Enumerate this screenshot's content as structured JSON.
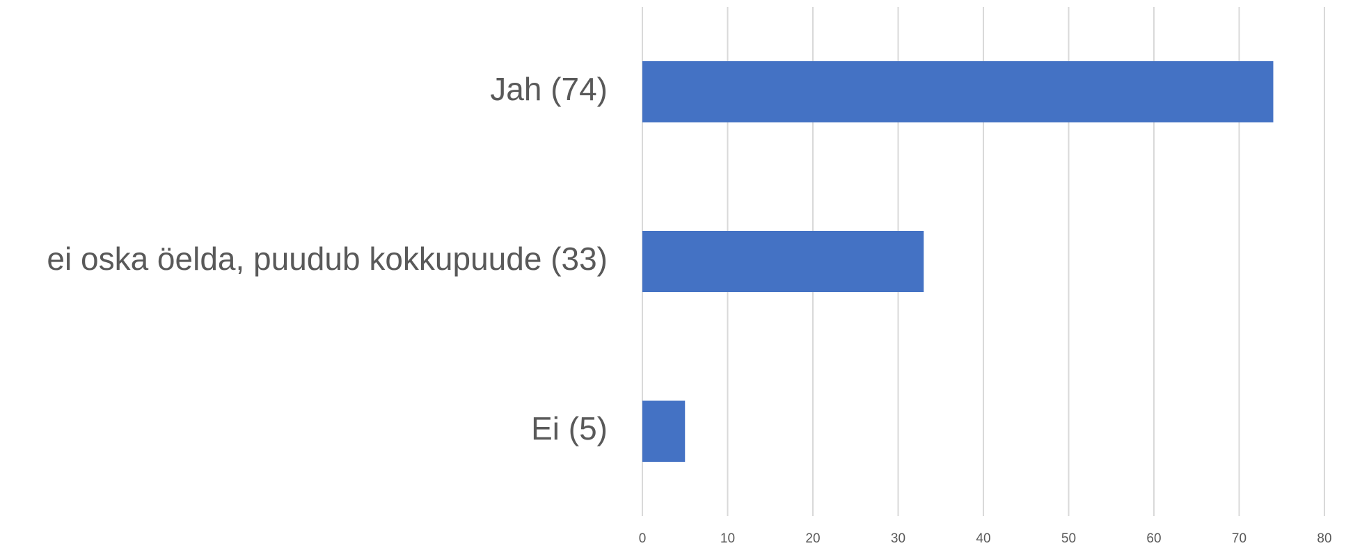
{
  "chart_data": {
    "type": "bar",
    "orientation": "horizontal",
    "categories": [
      "Jah (74)",
      "ei oska öelda, puudub kokkupuude (33)",
      "Ei (5)"
    ],
    "values": [
      74,
      33,
      5
    ],
    "color": "#4472c4",
    "xlim": [
      0,
      80
    ],
    "xticks": [
      0,
      10,
      20,
      30,
      40,
      50,
      60,
      70,
      80
    ],
    "grid": true
  }
}
